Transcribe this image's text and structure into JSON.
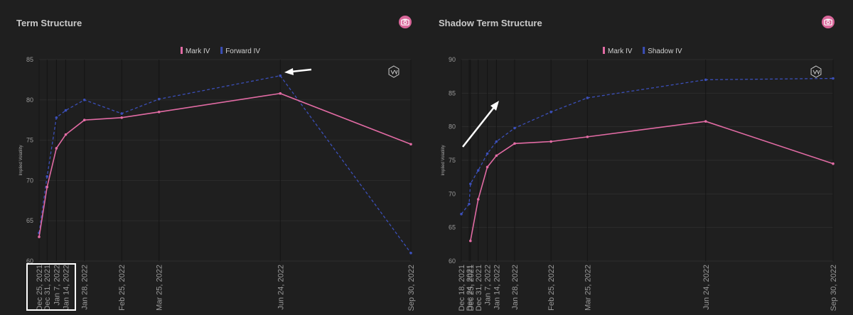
{
  "colors": {
    "mark": "#e26ba4",
    "forward": "#3b4fb8",
    "shadow": "#3b4fb8",
    "grid": "#2c2c2c",
    "vgrid": "#141414"
  },
  "icons": {
    "camera": "camera-icon",
    "logo": "gv-logo-icon"
  },
  "chart_data": [
    {
      "type": "line",
      "title": "Term Structure",
      "ylabel": "Implied Volatility",
      "ylim": [
        60,
        85
      ],
      "yticks": [
        60,
        65,
        70,
        75,
        80,
        85
      ],
      "x": [
        "Dec 25, 2021",
        "Dec 31, 2021",
        "Jan 7, 2022",
        "Jan 14, 2022",
        "Jan 28, 2022",
        "Feb 25, 2022",
        "Mar 25, 2022",
        "Jun 24, 2022",
        "Sep 30, 2022"
      ],
      "x_days": [
        0,
        6,
        13,
        20,
        34,
        62,
        90,
        181,
        279
      ],
      "legend_position": "top-center",
      "series": [
        {
          "name": "Mark IV",
          "style": "solid",
          "values": [
            63.0,
            69.2,
            74.0,
            75.7,
            77.5,
            77.8,
            78.5,
            80.8,
            74.5
          ]
        },
        {
          "name": "Forward IV",
          "style": "dashed",
          "values": [
            63.5,
            70.5,
            77.8,
            78.7,
            80.0,
            78.3,
            80.1,
            83.0,
            61.0
          ]
        }
      ]
    },
    {
      "type": "line",
      "title": "Shadow Term Structure",
      "ylabel": "Implied Volatility",
      "ylim": [
        60,
        90
      ],
      "yticks": [
        60,
        65,
        70,
        75,
        80,
        85,
        90
      ],
      "x": [
        "Dec 18, 2021",
        "Dec 24, 2021",
        "Dec 25, 2021",
        "Dec 31, 2021",
        "Jan 7, 2022",
        "Jan 14, 2022",
        "Jan 28, 2022",
        "Feb 25, 2022",
        "Mar 25, 2022",
        "Jun 24, 2022",
        "Sep 30, 2022"
      ],
      "x_days": [
        -7,
        -1,
        0,
        6,
        13,
        20,
        34,
        62,
        90,
        181,
        279
      ],
      "legend_position": "top-center",
      "series": [
        {
          "name": "Mark IV",
          "style": "solid",
          "values": [
            null,
            null,
            63.0,
            69.2,
            74.0,
            75.7,
            77.5,
            77.8,
            78.5,
            80.8,
            74.5
          ]
        },
        {
          "name": "Shadow IV",
          "style": "dashed",
          "values": [
            67.0,
            68.5,
            71.5,
            73.5,
            76.0,
            77.8,
            79.8,
            82.2,
            84.3,
            87.0,
            87.2
          ]
        }
      ]
    }
  ]
}
